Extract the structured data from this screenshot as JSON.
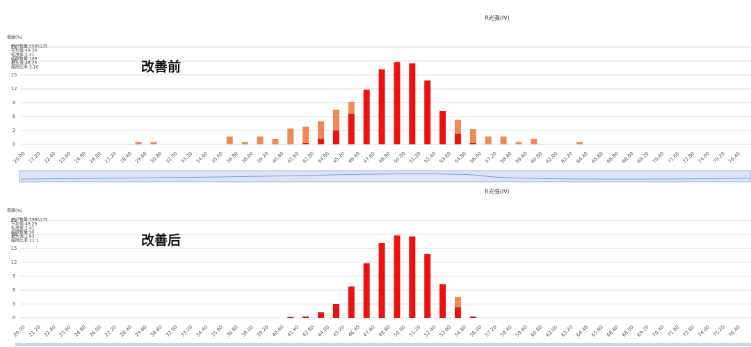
{
  "chart_data": [
    {
      "type": "bar",
      "stacked": true,
      "title": "R光强(IV)",
      "ylabel": "密度(%)",
      "annotation": "改善前",
      "stats": [
        "统计数量:5995135",
        "平均值:49.39",
        "标准差:2.41",
        "超限数量:189",
        "最大值:48.29",
        "超限比率:3.16"
      ],
      "categories": [
        "20.00",
        "21.20",
        "22.40",
        "23.60",
        "24.80",
        "26.00",
        "27.20",
        "28.40",
        "29.60",
        "30.80",
        "32.00",
        "33.20",
        "34.40",
        "35.60",
        "36.80",
        "38.00",
        "39.20",
        "40.40",
        "41.60",
        "42.80",
        "44.00",
        "45.20",
        "46.40",
        "47.60",
        "48.80",
        "50.00",
        "51.20",
        "52.40",
        "53.60",
        "54.80",
        "56.00",
        "57.20",
        "58.40",
        "59.60",
        "60.80",
        "62.00",
        "63.20",
        "64.40",
        "65.60",
        "66.80",
        "68.00",
        "69.20",
        "70.40",
        "71.60",
        "72.80",
        "74.00",
        "75.20",
        "76.40"
      ],
      "series": [
        {
          "color": "#ee1111",
          "values": [
            0,
            0,
            0,
            0,
            0,
            0,
            0,
            0,
            0,
            0,
            0,
            0,
            0,
            0,
            0,
            0,
            0,
            0,
            0.3,
            1.2,
            3,
            6.6,
            11.8,
            16.2,
            17.8,
            17.5,
            13.8,
            7.2,
            2.3,
            0.3,
            0,
            0,
            0,
            0,
            0,
            0,
            0,
            0,
            0,
            0,
            0,
            0,
            0,
            0,
            0,
            0,
            0,
            0
          ]
        },
        {
          "color": "#f08a55",
          "values": [
            0,
            0,
            0,
            0,
            0,
            0,
            0,
            0.5,
            0.5,
            0,
            0,
            0,
            0,
            1.7,
            0.5,
            1.7,
            1.2,
            3.4,
            3.5,
            3.8,
            4.5,
            2.6,
            0,
            0,
            0,
            0,
            0,
            0,
            3,
            3,
            1.7,
            1.7,
            0.5,
            1.2,
            0,
            0,
            0.5,
            0,
            0,
            0,
            0,
            0,
            0,
            0,
            0,
            0,
            0,
            0
          ]
        }
      ],
      "ylim": [
        0,
        21
      ],
      "yticks": [
        0,
        3,
        6,
        9,
        12,
        15,
        18,
        21
      ],
      "grid": true
    },
    {
      "type": "bar",
      "stacked": true,
      "title": "R光强(IV)",
      "ylabel": "密度(%)",
      "annotation": "改善后",
      "stats": [
        "统计数量:5995135",
        "平均值:49.29",
        "标准差:2.41",
        "超限数量:50",
        "最大值:2.83",
        "超限比率:11.1"
      ],
      "categories": [
        "20.00",
        "21.20",
        "22.40",
        "23.60",
        "24.80",
        "26.00",
        "27.20",
        "28.40",
        "29.60",
        "30.80",
        "32.00",
        "33.20",
        "34.40",
        "35.60",
        "36.80",
        "38.00",
        "39.20",
        "40.40",
        "41.60",
        "42.80",
        "44.00",
        "45.20",
        "46.40",
        "47.60",
        "48.80",
        "50.00",
        "51.20",
        "52.40",
        "53.60",
        "54.80",
        "56.00",
        "57.20",
        "58.40",
        "59.60",
        "60.80",
        "62.00",
        "63.20",
        "64.40",
        "65.60",
        "66.80",
        "68.00",
        "69.20",
        "70.40",
        "71.60",
        "72.80",
        "74.00",
        "75.20",
        "76.40"
      ],
      "series": [
        {
          "color": "#ee1111",
          "values": [
            0,
            0,
            0,
            0,
            0,
            0,
            0,
            0,
            0,
            0,
            0,
            0,
            0,
            0,
            0,
            0,
            0,
            0.2,
            0.3,
            1.2,
            3,
            6.8,
            11.8,
            16.2,
            17.8,
            17.6,
            13.8,
            7.3,
            2.3,
            0.3,
            0,
            0,
            0,
            0,
            0,
            0,
            0,
            0,
            0,
            0,
            0,
            0,
            0,
            0,
            0,
            0,
            0,
            0
          ]
        },
        {
          "color": "#f08a55",
          "values": [
            0,
            0,
            0,
            0,
            0,
            0,
            0,
            0,
            0,
            0,
            0,
            0,
            0,
            0,
            0,
            0,
            0,
            0,
            0,
            0,
            0,
            0,
            0,
            0,
            0,
            0,
            0,
            0,
            2.2,
            0,
            0,
            0,
            0,
            0,
            0,
            0,
            0,
            0,
            0,
            0,
            0,
            0,
            0,
            0,
            0,
            0,
            0,
            0
          ]
        }
      ],
      "ylim": [
        0,
        21
      ],
      "yticks": [
        0,
        3,
        6,
        9,
        12,
        15,
        18,
        21
      ],
      "grid": true
    }
  ]
}
